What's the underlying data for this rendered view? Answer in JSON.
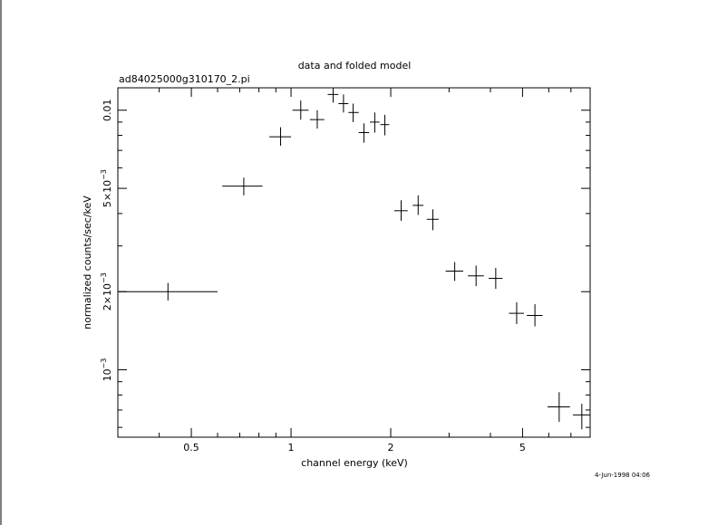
{
  "chart_data": {
    "type": "scatter",
    "title": "data and folded model",
    "subtitle": "ad84025000g310170_2.pi",
    "xlabel": "channel energy (keV)",
    "ylabel": "normalized counts/sec/keV",
    "timestamp": "4-Jun-1998 04:06",
    "x_scale": "log",
    "y_scale": "log",
    "xlim": [
      0.3,
      8.0
    ],
    "ylim": [
      0.00055,
      0.0122
    ],
    "x_ticks": [
      {
        "value": 0.5,
        "label": "0.5"
      },
      {
        "value": 1,
        "label": "1"
      },
      {
        "value": 2,
        "label": "2"
      },
      {
        "value": 5,
        "label": "5"
      }
    ],
    "y_ticks": [
      {
        "value": 0.001,
        "label": "10",
        "exp": "−3"
      },
      {
        "value": 0.002,
        "label": "2×10",
        "exp": "−3"
      },
      {
        "value": 0.005,
        "label": "5×10",
        "exp": "−3"
      },
      {
        "value": 0.01,
        "label": "0.01",
        "exp": ""
      }
    ],
    "points": [
      {
        "x": 0.425,
        "xlo": 0.3,
        "xhi": 0.6,
        "y": 0.002,
        "ylo": 0.00185,
        "yhi": 0.00216
      },
      {
        "x": 0.72,
        "xlo": 0.62,
        "xhi": 0.82,
        "y": 0.0051,
        "ylo": 0.0047,
        "yhi": 0.0055
      },
      {
        "x": 0.93,
        "xlo": 0.86,
        "xhi": 1.0,
        "y": 0.0079,
        "ylo": 0.0073,
        "yhi": 0.0086
      },
      {
        "x": 1.07,
        "xlo": 1.01,
        "xhi": 1.13,
        "y": 0.01,
        "ylo": 0.0092,
        "yhi": 0.0109
      },
      {
        "x": 1.2,
        "xlo": 1.14,
        "xhi": 1.26,
        "y": 0.0092,
        "ylo": 0.0085,
        "yhi": 0.01
      },
      {
        "x": 1.34,
        "xlo": 1.29,
        "xhi": 1.39,
        "y": 0.0115,
        "ylo": 0.0107,
        "yhi": 0.0122
      },
      {
        "x": 1.44,
        "xlo": 1.39,
        "xhi": 1.49,
        "y": 0.0106,
        "ylo": 0.0098,
        "yhi": 0.0115
      },
      {
        "x": 1.54,
        "xlo": 1.49,
        "xhi": 1.6,
        "y": 0.0098,
        "ylo": 0.009,
        "yhi": 0.0106
      },
      {
        "x": 1.66,
        "xlo": 1.6,
        "xhi": 1.72,
        "y": 0.0082,
        "ylo": 0.0075,
        "yhi": 0.0089
      },
      {
        "x": 1.79,
        "xlo": 1.73,
        "xhi": 1.85,
        "y": 0.009,
        "ylo": 0.0082,
        "yhi": 0.0098
      },
      {
        "x": 1.92,
        "xlo": 1.86,
        "xhi": 1.98,
        "y": 0.0088,
        "ylo": 0.008,
        "yhi": 0.0096
      },
      {
        "x": 2.15,
        "xlo": 2.05,
        "xhi": 2.25,
        "y": 0.0041,
        "ylo": 0.00375,
        "yhi": 0.0045
      },
      {
        "x": 2.42,
        "xlo": 2.33,
        "xhi": 2.51,
        "y": 0.0043,
        "ylo": 0.00395,
        "yhi": 0.0047
      },
      {
        "x": 2.68,
        "xlo": 2.57,
        "xhi": 2.79,
        "y": 0.0038,
        "ylo": 0.00345,
        "yhi": 0.00415
      },
      {
        "x": 3.12,
        "xlo": 2.93,
        "xhi": 3.31,
        "y": 0.0024,
        "ylo": 0.0022,
        "yhi": 0.0026
      },
      {
        "x": 3.62,
        "xlo": 3.42,
        "xhi": 3.82,
        "y": 0.0023,
        "ylo": 0.0021,
        "yhi": 0.00252
      },
      {
        "x": 4.15,
        "xlo": 3.95,
        "xhi": 4.35,
        "y": 0.00225,
        "ylo": 0.00205,
        "yhi": 0.00247
      },
      {
        "x": 4.8,
        "xlo": 4.55,
        "xhi": 5.05,
        "y": 0.00165,
        "ylo": 0.0015,
        "yhi": 0.00182
      },
      {
        "x": 5.45,
        "xlo": 5.15,
        "xhi": 5.75,
        "y": 0.00162,
        "ylo": 0.00147,
        "yhi": 0.00179
      },
      {
        "x": 6.45,
        "xlo": 5.95,
        "xhi": 6.95,
        "y": 0.00072,
        "ylo": 0.00063,
        "yhi": 0.00082
      },
      {
        "x": 7.55,
        "xlo": 7.1,
        "xhi": 8.0,
        "y": 0.00067,
        "ylo": 0.00059,
        "yhi": 0.00074
      }
    ]
  }
}
